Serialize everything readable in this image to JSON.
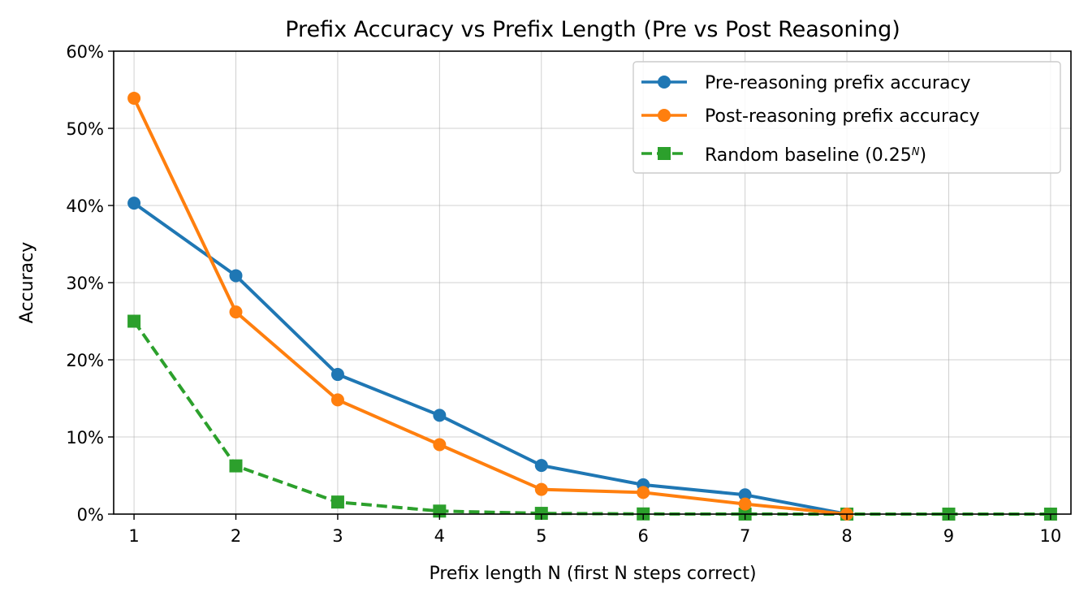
{
  "chart_data": {
    "type": "line",
    "title": "Prefix Accuracy vs Prefix Length (Pre vs Post Reasoning)",
    "xlabel": "Prefix length N (first N steps correct)",
    "ylabel": "Accuracy",
    "x": [
      1,
      2,
      3,
      4,
      5,
      6,
      7,
      8,
      9,
      10
    ],
    "xlim": [
      0.8,
      10.2
    ],
    "ylim": [
      0,
      60
    ],
    "y_ticks": [
      "0%",
      "10%",
      "20%",
      "30%",
      "40%",
      "50%",
      "60%"
    ],
    "x_ticks": [
      "1",
      "2",
      "3",
      "4",
      "5",
      "6",
      "7",
      "8",
      "9",
      "10"
    ],
    "grid": true,
    "legend_position": "top-right",
    "series": [
      {
        "name": "Pre-reasoning prefix accuracy",
        "color": "#1f77b4",
        "marker": "circle",
        "linestyle": "solid",
        "values": [
          40.3,
          30.9,
          18.1,
          12.8,
          6.3,
          3.8,
          2.5,
          0,
          null,
          null
        ]
      },
      {
        "name": "Post-reasoning prefix accuracy",
        "color": "#ff7f0e",
        "marker": "circle",
        "linestyle": "solid",
        "values": [
          53.9,
          26.2,
          14.8,
          9.0,
          3.2,
          2.8,
          1.3,
          0,
          null,
          null
        ]
      },
      {
        "name_text": "Random baseline (0.25",
        "name_sup": "N",
        "name_close": ")",
        "color": "#2ca02c",
        "marker": "square",
        "linestyle": "dashed",
        "values": [
          25.0,
          6.25,
          1.5625,
          0.390625,
          0.0977,
          0.0244,
          0.0061,
          0.0015,
          0.0004,
          0.0001
        ]
      }
    ]
  }
}
